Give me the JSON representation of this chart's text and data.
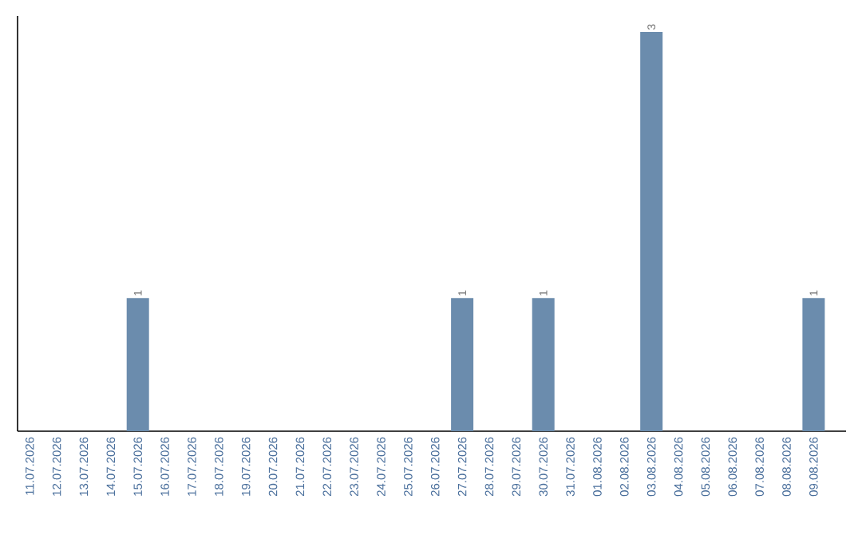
{
  "chart_data": {
    "type": "bar",
    "categories": [
      "11.07.2026",
      "12.07.2026",
      "13.07.2026",
      "14.07.2026",
      "15.07.2026",
      "16.07.2026",
      "17.07.2026",
      "18.07.2026",
      "19.07.2026",
      "20.07.2026",
      "21.07.2026",
      "22.07.2026",
      "23.07.2026",
      "24.07.2026",
      "25.07.2026",
      "26.07.2026",
      "27.07.2026",
      "28.07.2026",
      "29.07.2026",
      "30.07.2026",
      "31.07.2026",
      "01.08.2026",
      "02.08.2026",
      "03.08.2026",
      "04.08.2026",
      "05.08.2026",
      "06.08.2026",
      "07.08.2026",
      "08.08.2026",
      "09.08.2026"
    ],
    "values": [
      0,
      0,
      0,
      0,
      1,
      0,
      0,
      0,
      0,
      0,
      0,
      0,
      0,
      0,
      0,
      0,
      1,
      0,
      0,
      1,
      0,
      0,
      0,
      3,
      0,
      0,
      0,
      0,
      0,
      1
    ],
    "value_labels": [
      null,
      null,
      null,
      null,
      "1",
      null,
      null,
      null,
      null,
      null,
      null,
      null,
      null,
      null,
      null,
      null,
      "1",
      null,
      null,
      "1",
      null,
      null,
      null,
      "3",
      null,
      null,
      null,
      null,
      null,
      "1"
    ],
    "color": "#6b8cad",
    "tick_labels": "x"
  }
}
